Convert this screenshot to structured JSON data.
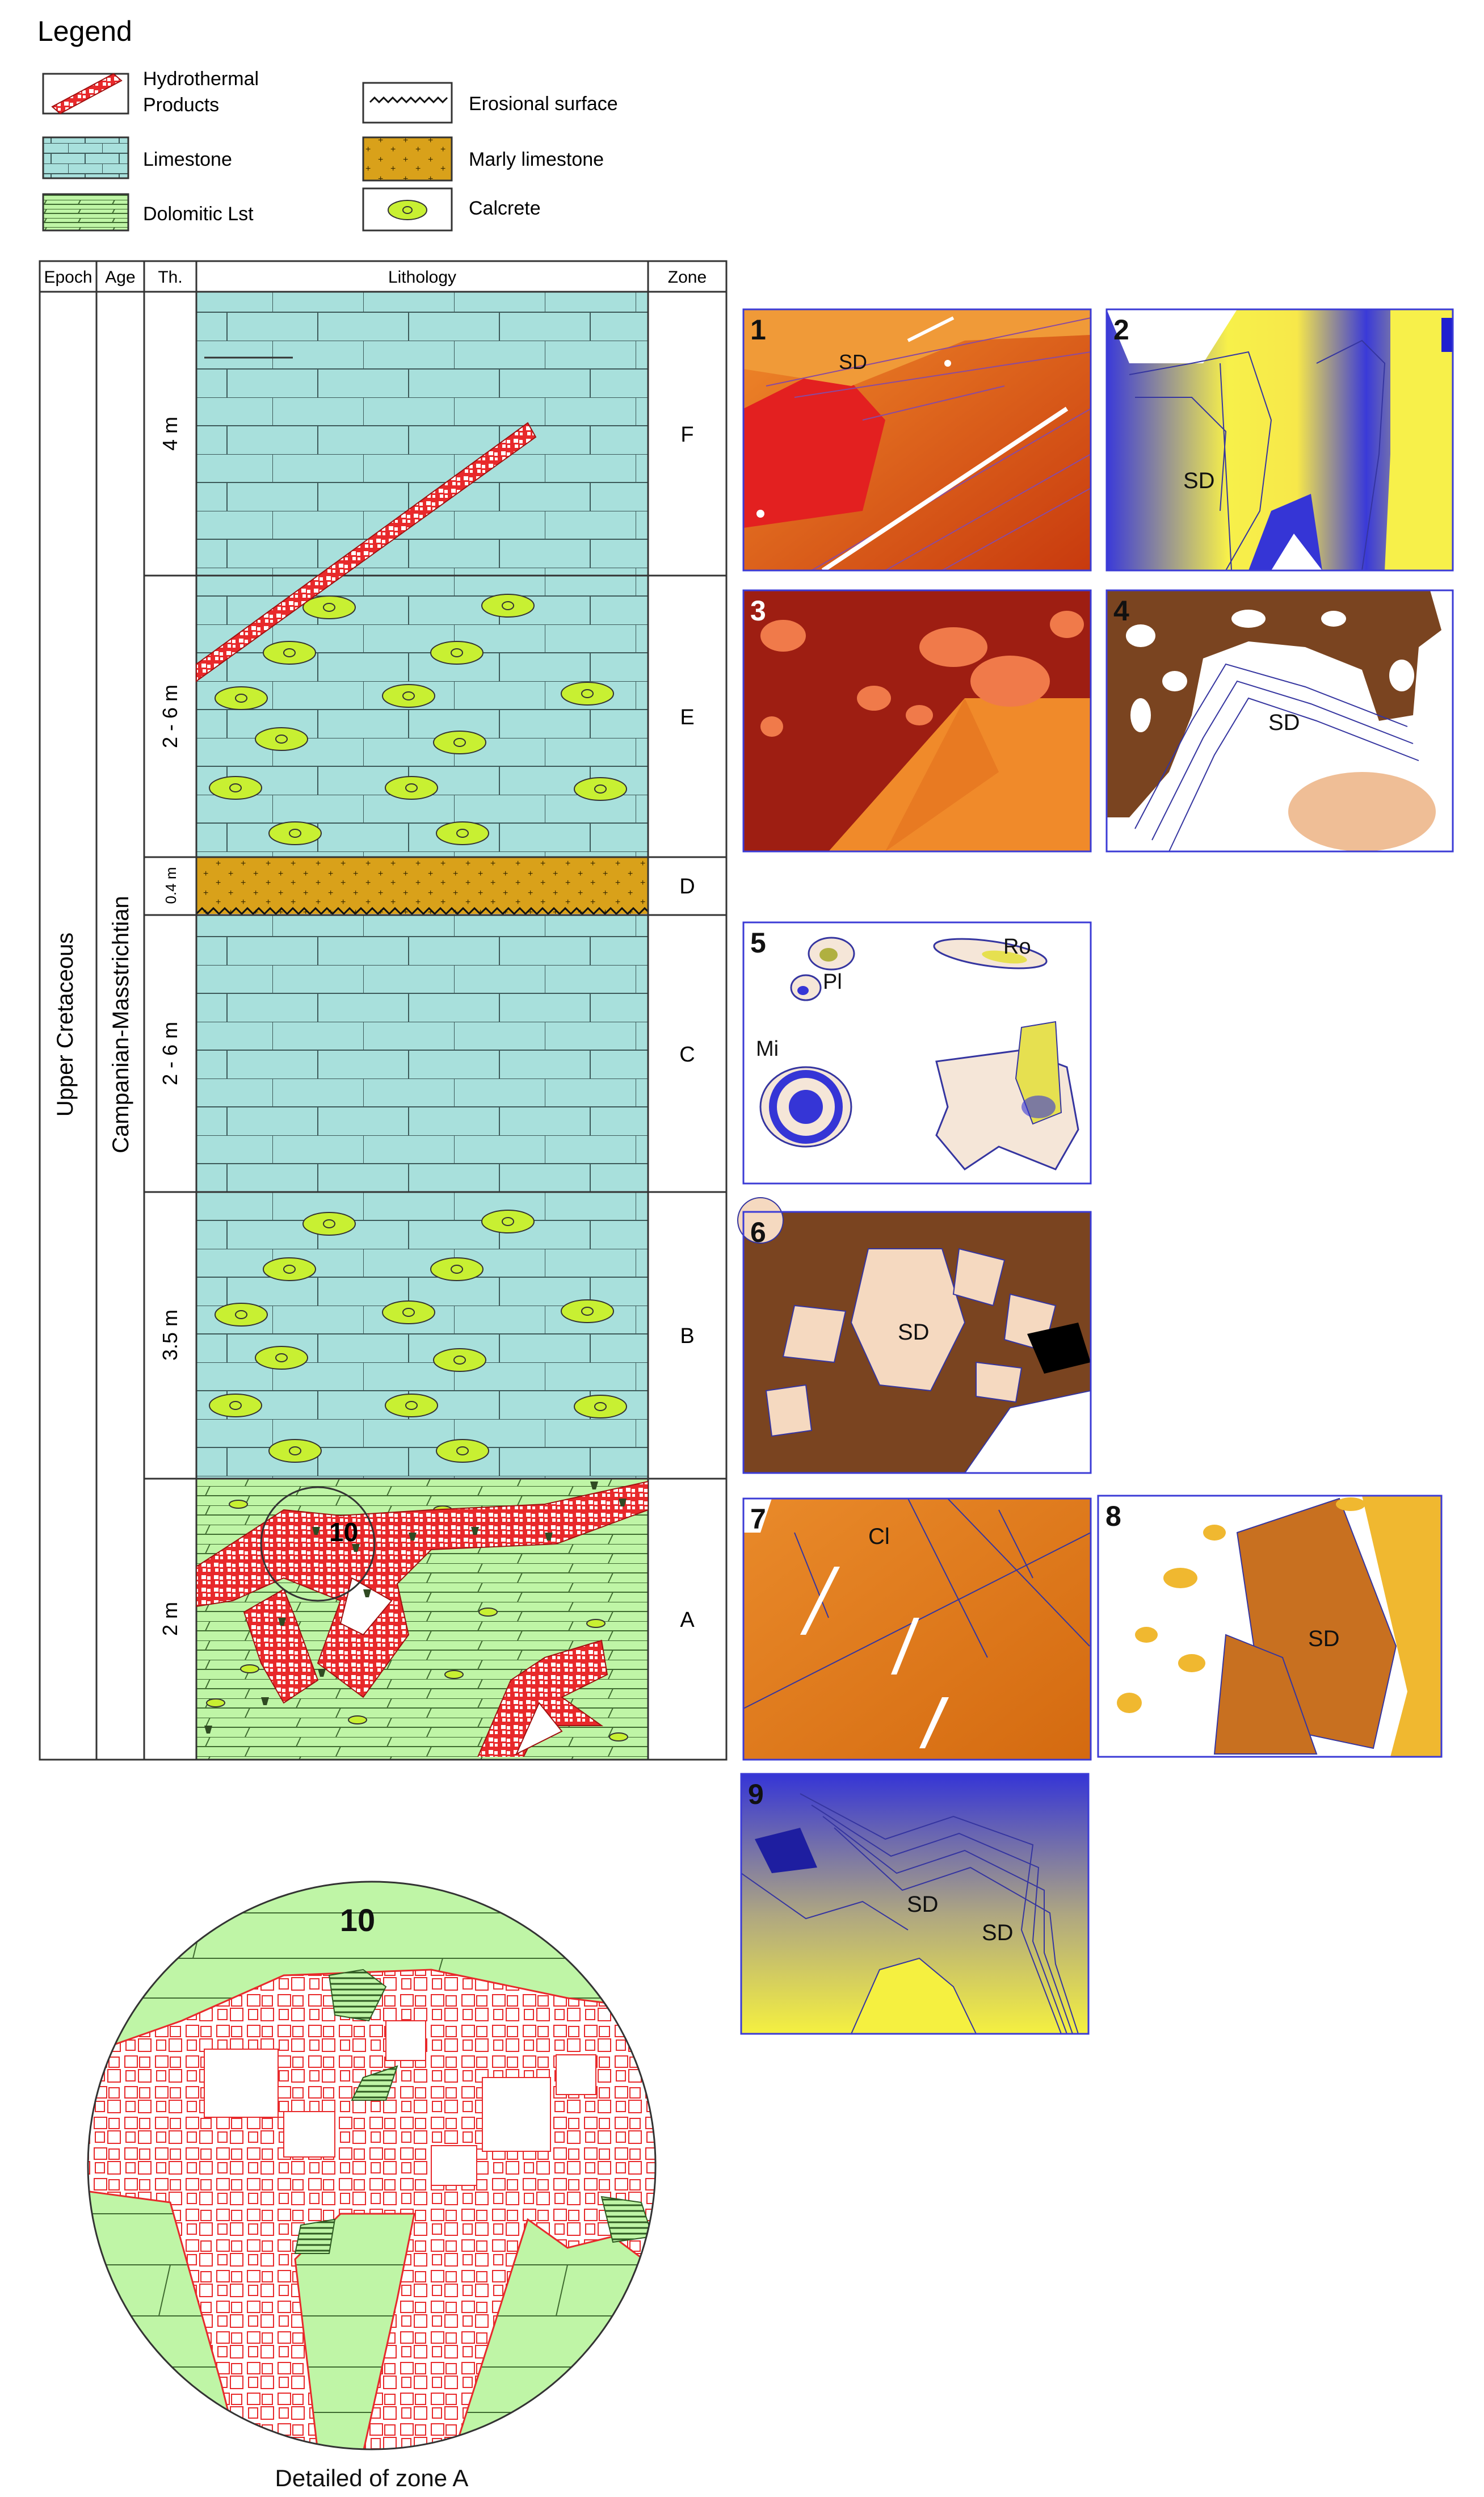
{
  "legend": {
    "title": "Legend",
    "items": [
      {
        "key": "hydrothermal",
        "label1": "Hydrothermal",
        "label2": "Products"
      },
      {
        "key": "limestone",
        "label": "Limestone"
      },
      {
        "key": "dolomitic",
        "label": "Dolomitic Lst"
      },
      {
        "key": "erosional",
        "label": "Erosional surface"
      },
      {
        "key": "marly",
        "label": "Marly limestone"
      },
      {
        "key": "calcrete",
        "label": "Calcrete"
      }
    ]
  },
  "column": {
    "headers": {
      "epoch": "Epoch",
      "age": "Age",
      "thickness": "Th.",
      "lithology": "Lithology",
      "zone": "Zone"
    },
    "epoch": "Upper Cretaceous",
    "age": "Campanian-Masstrichtian",
    "zones": [
      {
        "zone": "F",
        "thickness": "4 m",
        "lithology": "limestone"
      },
      {
        "zone": "E",
        "thickness": "2 - 6 m",
        "lithology": "limestone with calcrete"
      },
      {
        "zone": "D",
        "thickness": "0.4 m",
        "lithology": "marly limestone"
      },
      {
        "zone": "C",
        "thickness": "2 - 6 m",
        "lithology": "limestone"
      },
      {
        "zone": "B",
        "thickness": "3.5 m",
        "lithology": "limestone with calcrete"
      },
      {
        "zone": "A",
        "thickness": "2 m",
        "lithology": "dolomitic limestone with hydrothermal products"
      }
    ]
  },
  "panels": [
    {
      "number": "1",
      "labels": [
        "SD"
      ]
    },
    {
      "number": "2",
      "labels": [
        "SD"
      ]
    },
    {
      "number": "3",
      "labels": []
    },
    {
      "number": "4",
      "labels": [
        "SD"
      ]
    },
    {
      "number": "5",
      "labels": [
        "Pl",
        "Ro",
        "Mi"
      ]
    },
    {
      "number": "6",
      "labels": [
        "SD"
      ]
    },
    {
      "number": "7",
      "labels": [
        "Cl"
      ]
    },
    {
      "number": "8",
      "labels": [
        "SD"
      ]
    },
    {
      "number": "9",
      "labels": [
        "SD",
        "SD"
      ]
    }
  ],
  "detail": {
    "number": "10",
    "caption": "Detailed of zone A"
  },
  "colors": {
    "limestone": "#a8e0dc",
    "dolomitic": "#bff5a6",
    "marly": "#d9a11a",
    "calcrete_fill": "#c8f032",
    "hydrothermal": "#e8292b",
    "frame_blue": "#3b3bd6"
  }
}
